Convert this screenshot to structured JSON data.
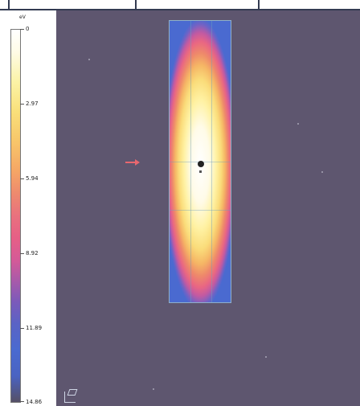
{
  "legend": {
    "unit": "eV",
    "ticks": [
      "0",
      "2.97",
      "5.94",
      "8.92",
      "11.89",
      "14.86"
    ]
  },
  "viewport": {
    "background_color": "#5e566f",
    "plot_region": "heat-map column"
  },
  "colors": {
    "top_bar_border": "#333b52",
    "marker": "#e8676f"
  }
}
